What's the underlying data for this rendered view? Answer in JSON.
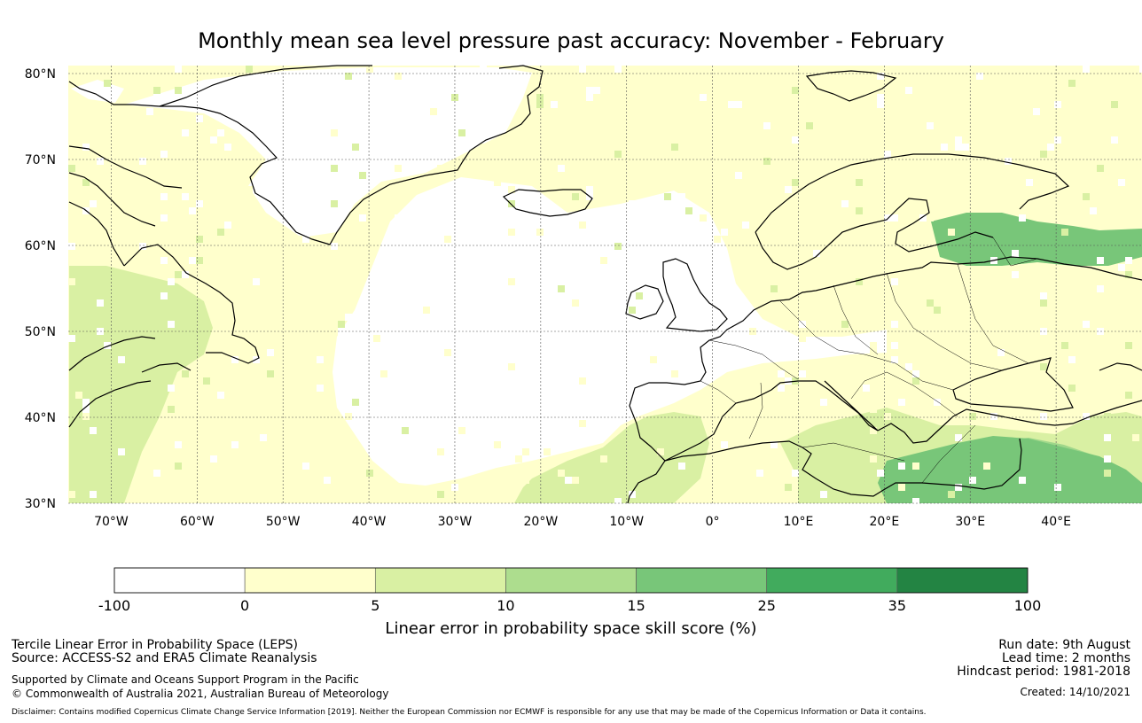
{
  "title": "Monthly mean sea level pressure past accuracy: November - February",
  "map": {
    "lat_labels": [
      "80°N",
      "70°N",
      "60°N",
      "50°N",
      "40°N",
      "30°N"
    ],
    "lat_values": [
      80,
      70,
      60,
      50,
      40,
      30
    ],
    "lon_labels": [
      "70°W",
      "60°W",
      "50°W",
      "40°W",
      "30°W",
      "20°W",
      "10°W",
      "0°",
      "10°E",
      "20°E",
      "30°E",
      "40°E"
    ],
    "lon_values": [
      -70,
      -60,
      -50,
      -40,
      -30,
      -20,
      -10,
      0,
      10,
      20,
      30,
      40
    ],
    "extent": {
      "lon_min": -75,
      "lon_max": 50,
      "lat_min": 30,
      "lat_max": 81
    },
    "regions": [
      {
        "name": "north-atlantic-open-ocean",
        "level": -100
      },
      {
        "name": "greenland-canada-arctic",
        "level": 0
      },
      {
        "name": "northern-europe-russia",
        "level": 0
      },
      {
        "name": "eastern-canada-labrador",
        "level": 5
      },
      {
        "name": "iberia-north-africa",
        "level": 5
      },
      {
        "name": "eastern-mediterranean",
        "level": 15
      }
    ]
  },
  "colorbar": {
    "ticks": [
      "-100",
      "0",
      "5",
      "10",
      "15",
      "25",
      "35",
      "100"
    ],
    "colors": [
      "#ffffff",
      "#ffffcc",
      "#d9f0a3",
      "#addd8e",
      "#78c679",
      "#41ab5d",
      "#238443"
    ],
    "label": "Linear error in probability space skill score (%)"
  },
  "footer": {
    "line1": "Tercile Linear Error in Probability Space (LEPS)",
    "line2": "Source: ACCESS-S2 and ERA5 Climate Reanalysis",
    "line3": "Supported by Climate and Oceans Support Program in the Pacific",
    "line4": "© Commonwealth of Australia 2021, Australian Bureau of Meteorology",
    "run_date": "Run date: 9th August",
    "lead_time": "Lead time: 2 months",
    "hindcast": "Hindcast period: 1981-2018",
    "created": "Created: 14/10/2021",
    "disclaimer": "Disclaimer: Contains modified Copernicus Climate Change Service Information [2019]. Neither the European Commission nor ECMWF is responsible for any use that may be made of the Copernicus Information or Data it contains."
  }
}
